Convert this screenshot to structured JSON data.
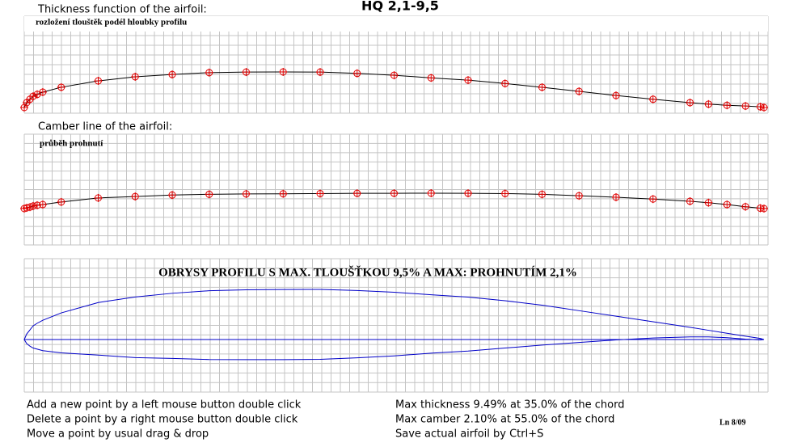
{
  "title": "HQ 2,1-9,5",
  "thickness_panel": {
    "label": "Thickness function of the airfoil:",
    "sublabel": "rozložení tlouštěk podél hloubky profilu"
  },
  "camber_panel": {
    "label": "Camber line of the airfoil:",
    "sublabel": "průběh prohnutí"
  },
  "outline_panel": {
    "title": "OBRYSY  PROFILU S MAX. TLOUŠŤKOU 9,5% A MAX: PROHNUTÍM 2,1%"
  },
  "points": {
    "x": [
      0,
      0.33,
      0.77,
      1.2,
      1.75,
      2.5,
      5,
      10,
      15,
      20,
      25,
      30,
      35,
      40,
      45,
      50,
      55,
      60,
      65,
      70,
      75,
      80,
      85,
      90,
      92.5,
      95,
      97.5,
      99.5,
      100
    ],
    "thickness": [
      0,
      1.3,
      2.2,
      3.0,
      3.5,
      4.1,
      5.4,
      7.1,
      8.2,
      8.8,
      9.3,
      9.45,
      9.49,
      9.45,
      9.1,
      8.6,
      7.9,
      7.3,
      6.4,
      5.4,
      4.3,
      3.2,
      2.2,
      1.3,
      0.9,
      0.6,
      0.4,
      0.2,
      0
    ],
    "camber": [
      0,
      0.1,
      0.2,
      0.35,
      0.45,
      0.55,
      0.9,
      1.45,
      1.65,
      1.85,
      1.95,
      2.0,
      2.02,
      2.05,
      2.08,
      2.09,
      2.1,
      2.09,
      2.05,
      1.95,
      1.75,
      1.55,
      1.3,
      1.0,
      0.8,
      0.55,
      0.25,
      0.05,
      0
    ]
  },
  "help": [
    "Add a new point by a left mouse button double click",
    "Delete a point by a right mouse button double click",
    "Move a point by usual drag & drop"
  ],
  "stats": [
    "Max thickness 9.49% at 35.0% of the chord",
    "Max camber 2.10% at 55.0% of the chord",
    "Save actual airfoil by Ctrl+S"
  ],
  "version": "Ln 8/09"
}
